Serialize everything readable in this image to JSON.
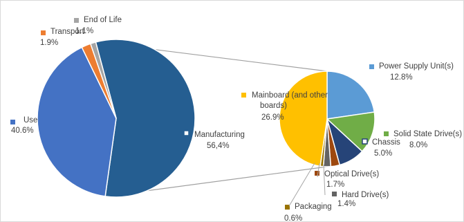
{
  "chart_data": [
    {
      "type": "pie",
      "title": "",
      "slices": [
        {
          "label": "Use",
          "value_text": "40.6%",
          "value": 40.6,
          "color": "#4472C4"
        },
        {
          "label": "Transport",
          "value_text": "1.9%",
          "value": 1.9,
          "color": "#ED7D31"
        },
        {
          "label": "End of Life",
          "value_text": "1.1%",
          "value": 1.1,
          "color": "#A5A5A5"
        },
        {
          "label": "Manufacturing",
          "value_text": "56,4%",
          "value": 56.4,
          "color": "#255E91"
        }
      ]
    },
    {
      "type": "pie",
      "title": "",
      "breakdown_of": "Manufacturing",
      "slices": [
        {
          "label": "Power Supply Unit(s)",
          "value_text": "12.8%",
          "value": 12.8,
          "color": "#5B9BD5"
        },
        {
          "label": "Solid State Drive(s)",
          "value_text": "8.0%",
          "value": 8.0,
          "color": "#70AD47"
        },
        {
          "label": "Chassis",
          "value_text": "5.0%",
          "value": 5.0,
          "color": "#264478"
        },
        {
          "label": "Optical Drive(s)",
          "value_text": "1.7%",
          "value": 1.7,
          "color": "#9E480E"
        },
        {
          "label": "Hard Drive(s)",
          "value_text": "1.4%",
          "value": 1.4,
          "color": "#636363"
        },
        {
          "label": "Packaging",
          "value_text": "0.6%",
          "value": 0.6,
          "color": "#997300"
        },
        {
          "label": "Mainboard (and other boards)",
          "value_text": "26.9%",
          "value": 26.9,
          "color": "#FFC000"
        }
      ]
    }
  ]
}
